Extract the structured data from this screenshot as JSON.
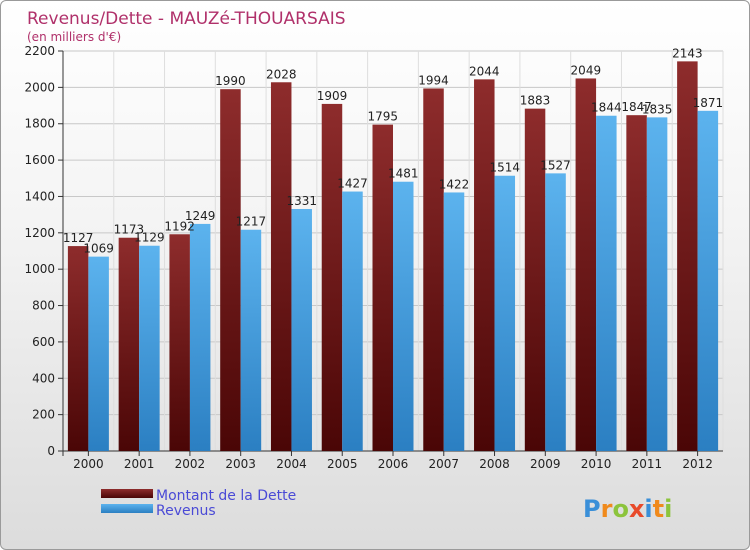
{
  "chart_data": {
    "type": "bar",
    "title": "Revenus/Dette - MAUZé-THOUARSAIS",
    "subtitle": "(en milliers d'€)",
    "categories": [
      "2000",
      "2001",
      "2002",
      "2003",
      "2004",
      "2005",
      "2006",
      "2007",
      "2008",
      "2009",
      "2010",
      "2011",
      "2012"
    ],
    "series": [
      {
        "name": "Montant de la Dette",
        "values": [
          1127,
          1173,
          1192,
          1990,
          2028,
          1909,
          1795,
          1994,
          2044,
          1883,
          2049,
          1847,
          2143
        ],
        "color": "#7a1e1e"
      },
      {
        "name": "Revenus",
        "values": [
          1069,
          1129,
          1249,
          1217,
          1331,
          1427,
          1481,
          1422,
          1514,
          1527,
          1844,
          1835,
          1871
        ],
        "color": "#3d9de0"
      }
    ],
    "ylim": [
      0,
      2200
    ],
    "yticks": [
      0,
      200,
      400,
      600,
      800,
      1000,
      1200,
      1400,
      1600,
      1800,
      2000,
      2200
    ],
    "grid": true,
    "legend_position": "bottom-left"
  },
  "branding": {
    "logo_text": "Proxiti"
  }
}
